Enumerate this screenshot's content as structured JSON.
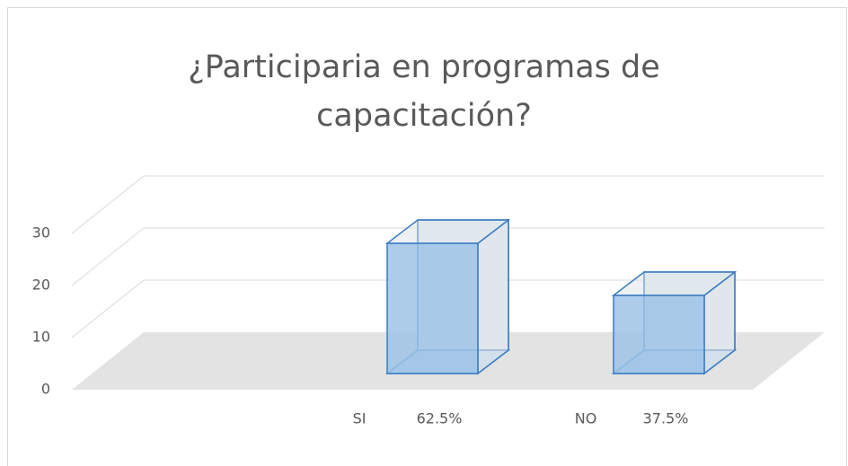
{
  "chart_data": {
    "type": "bar3d",
    "title": [
      "¿Participaria en programas de",
      "capacitación?"
    ],
    "categories": [
      "SI",
      "NO"
    ],
    "category_sublabels": [
      "62.5%",
      "37.5%"
    ],
    "values": [
      25,
      15
    ],
    "color": "#9dc3e6",
    "ylim": [
      0,
      30
    ],
    "yticks": [
      0,
      10,
      20,
      30
    ],
    "grid": true
  }
}
